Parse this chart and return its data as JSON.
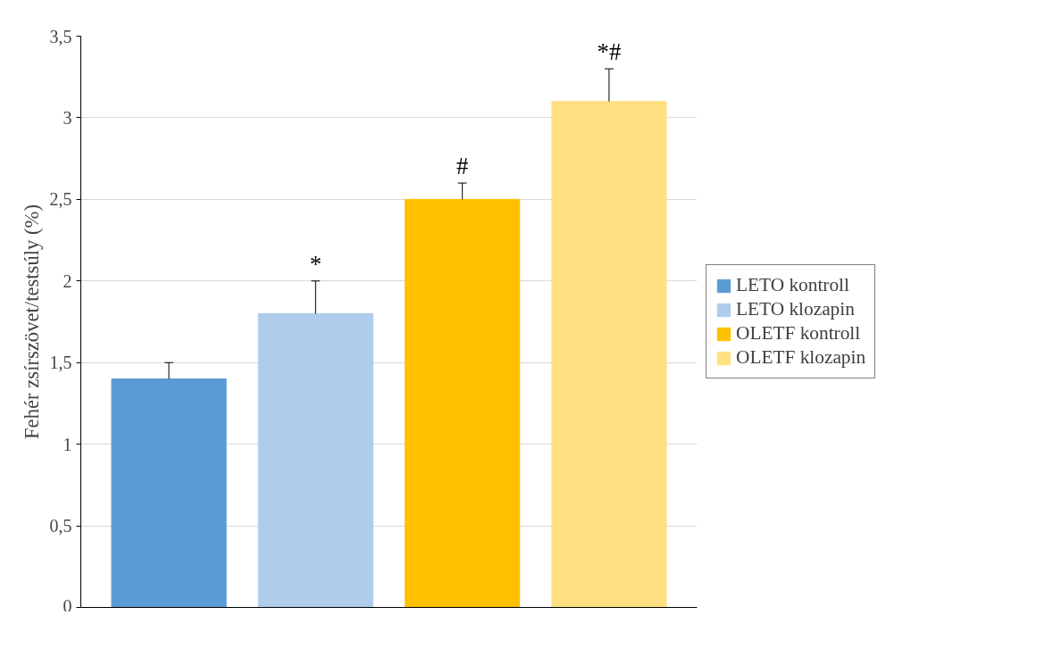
{
  "chart_data": {
    "type": "bar",
    "ylabel": "Fehér zsírszövet/testsúly (%)",
    "categories": [
      null
    ],
    "series": [
      {
        "name": "LETO kontroll",
        "color": "#5b9bd5",
        "values": [
          1.4
        ],
        "errors": [
          [
            1.4,
            1.5
          ]
        ],
        "value_labels": [
          null
        ]
      },
      {
        "name": "LETO klozapin",
        "color": "#adcdea",
        "values": [
          1.8
        ],
        "errors": [
          [
            1.8,
            2.0
          ]
        ],
        "value_labels": [
          "*"
        ]
      },
      {
        "name": "OLETF kontroll",
        "color": "#ffc000",
        "values": [
          2.5
        ],
        "errors": [
          [
            2.5,
            2.6
          ]
        ],
        "value_labels": [
          "#"
        ]
      },
      {
        "name": "OLETF klozapin",
        "color": "#ffe080",
        "values": [
          3.1
        ],
        "errors": [
          [
            3.1,
            3.3
          ]
        ],
        "value_labels": [
          "*#"
        ]
      }
    ],
    "ylim": [
      0,
      3.5
    ],
    "yticks": [
      0,
      {
        "value": 0.5,
        "label": "0,5"
      },
      1,
      {
        "value": 1.5,
        "label": "1,5"
      },
      2,
      {
        "value": 2.5,
        "label": "2,5"
      },
      3,
      {
        "value": 3.5,
        "label": "3,5"
      }
    ],
    "grid": "y",
    "legend": "right"
  }
}
